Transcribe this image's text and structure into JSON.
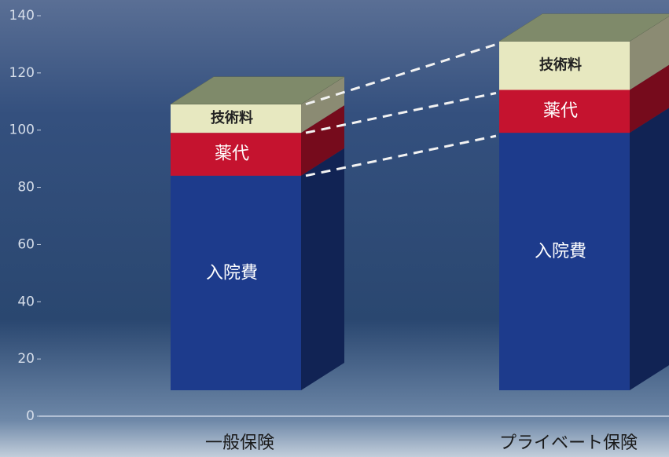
{
  "chart_data": {
    "type": "bar",
    "stacked": true,
    "categories": [
      "一般保険",
      "プライベート保険"
    ],
    "series": [
      {
        "name": "入院費",
        "color": "#1d3b8c",
        "values": [
          75,
          90
        ]
      },
      {
        "name": "薬代",
        "color": "#c5132f",
        "values": [
          15,
          15
        ]
      },
      {
        "name": "技術料",
        "color": "#e7e8c0",
        "values": [
          10,
          17
        ]
      }
    ],
    "ylim": [
      0,
      140
    ],
    "yticks": [
      0,
      20,
      40,
      60,
      80,
      100,
      120,
      140
    ]
  }
}
